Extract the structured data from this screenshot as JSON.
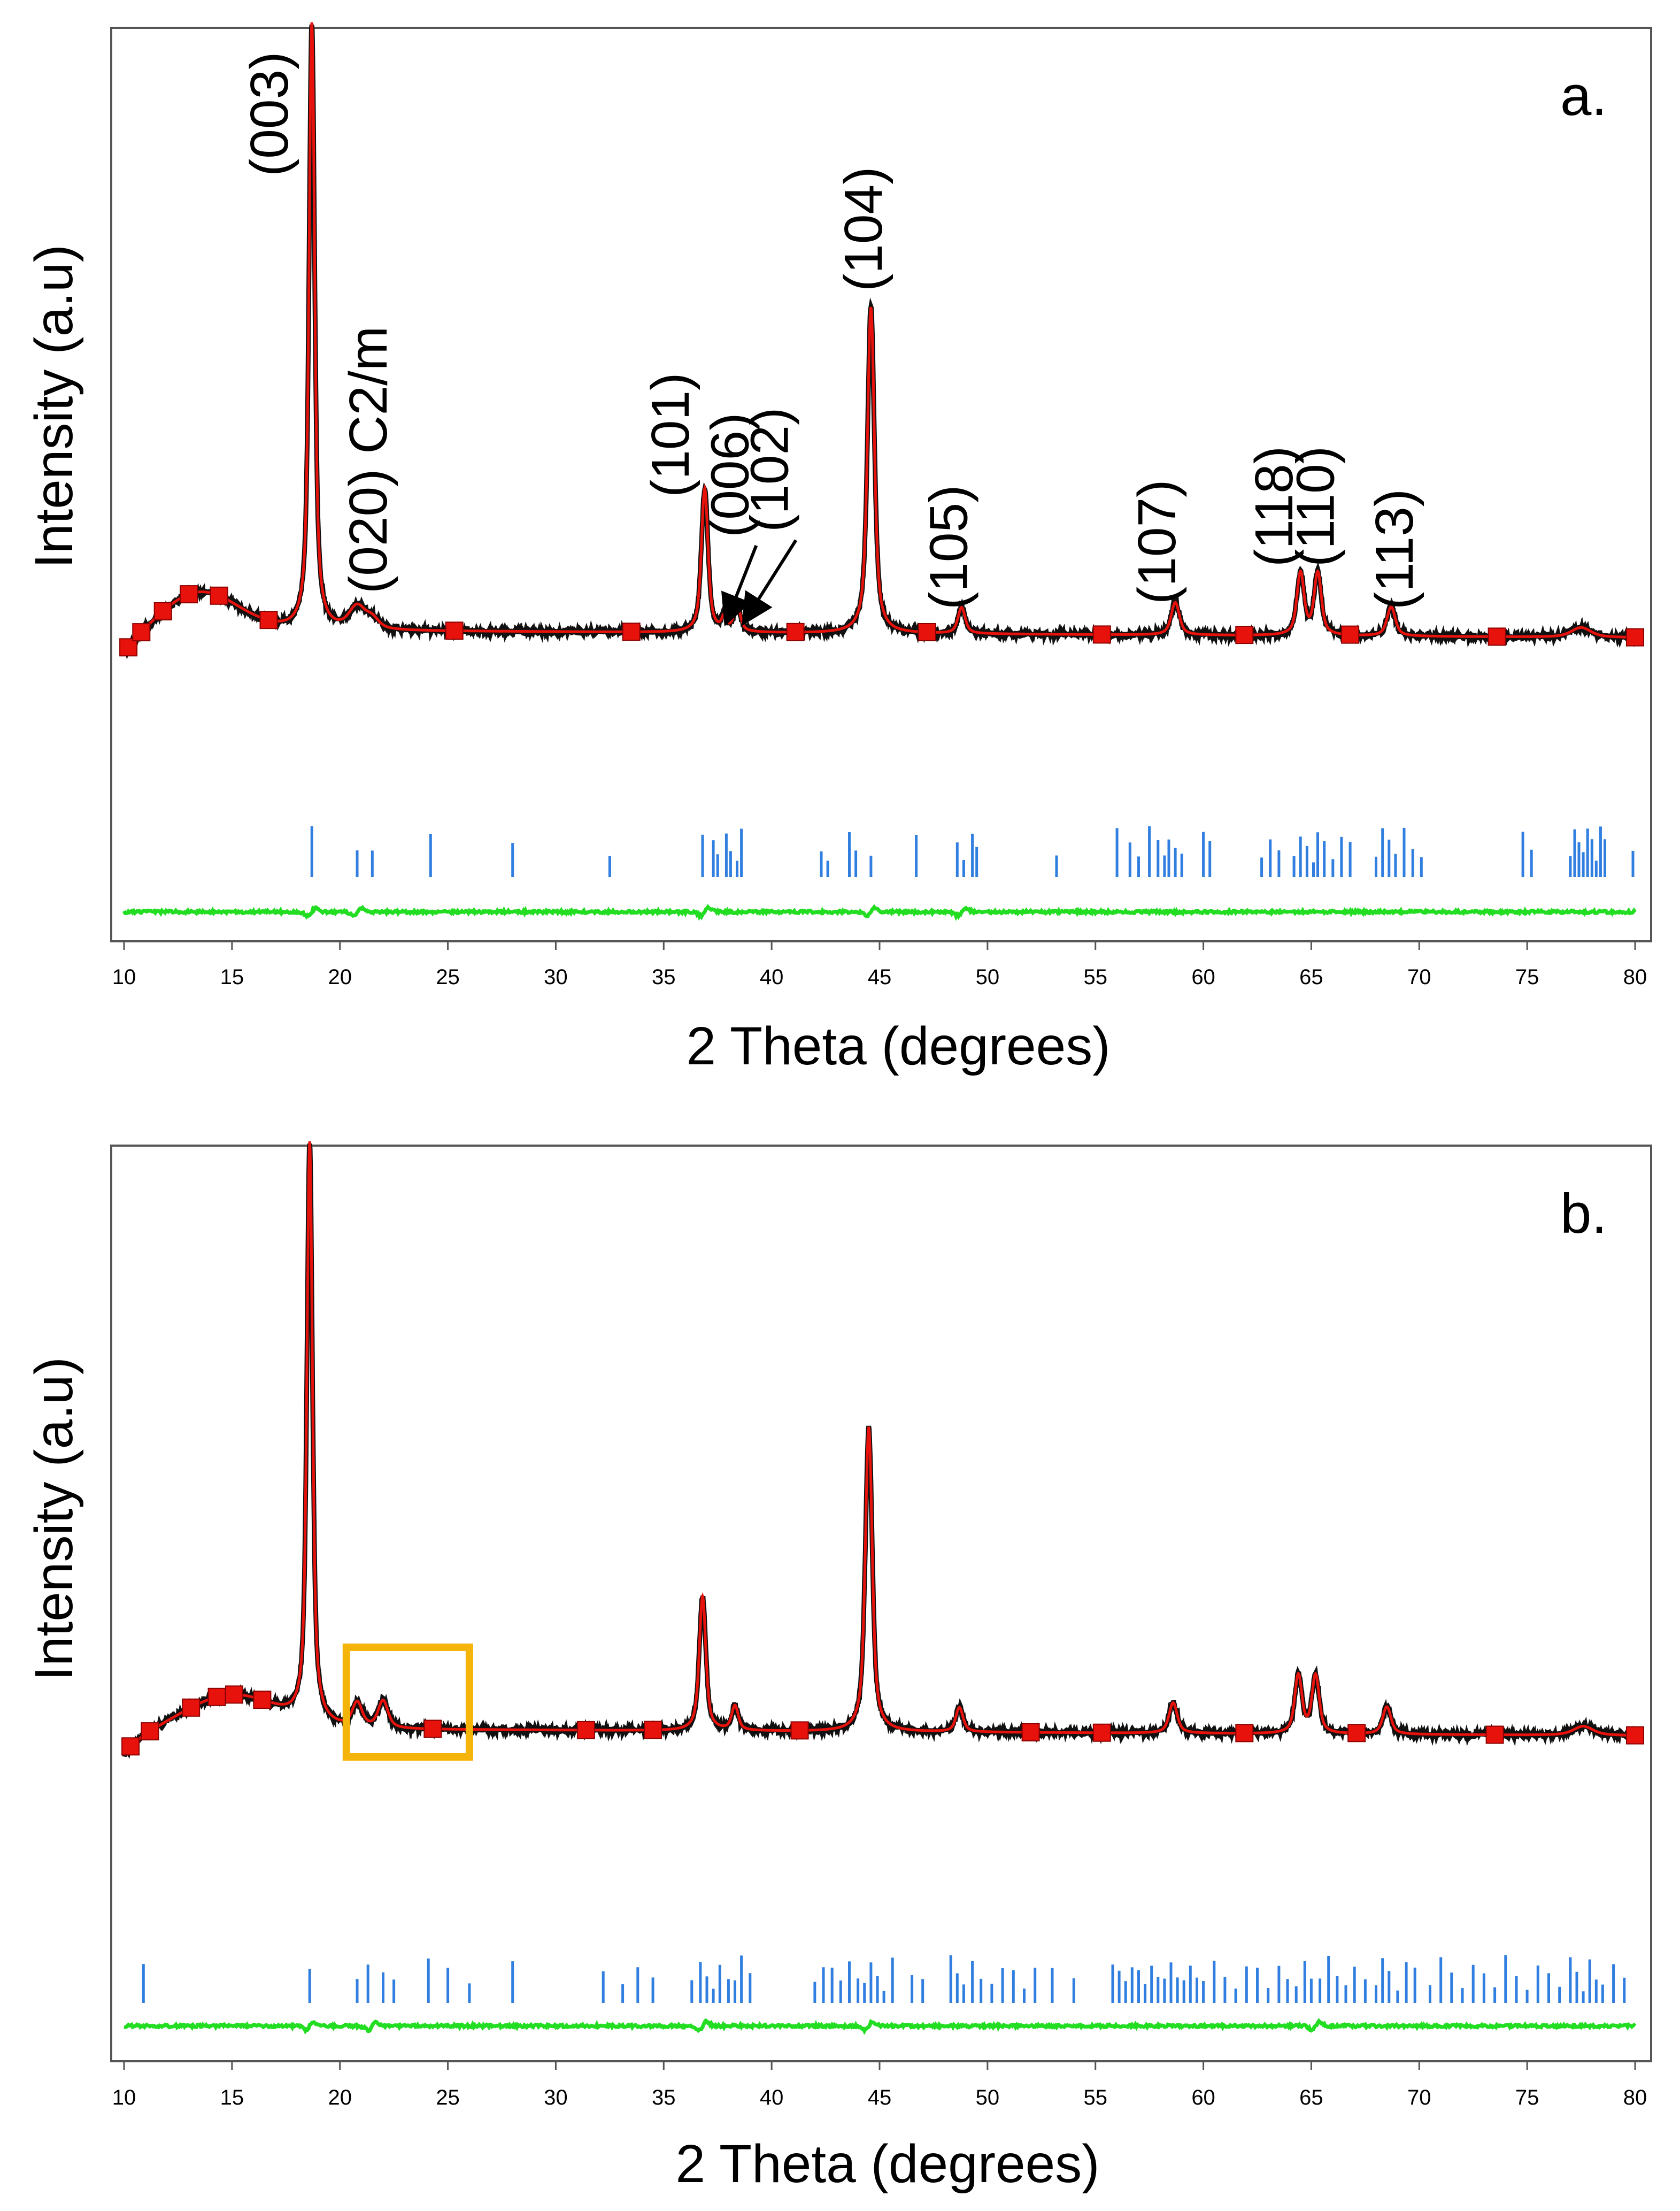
{
  "chart_data": [
    {
      "type": "line",
      "panel_label": "a.",
      "title": "",
      "xlabel": "2 Theta (degrees)",
      "ylabel": "Intensity (a.u)",
      "xlim": [
        10,
        80
      ],
      "ylim": [
        -0.45,
        1.02
      ],
      "x_ticks": [
        10,
        15,
        20,
        25,
        30,
        35,
        40,
        45,
        50,
        55,
        60,
        65,
        70,
        75,
        80
      ],
      "background": 0.05,
      "peaks": [
        {
          "x": 18.7,
          "h": 0.93,
          "w": 0.17,
          "label": "(003)"
        },
        {
          "x": 20.8,
          "h": 0.035,
          "w": 0.5,
          "label": "(020) C2/m"
        },
        {
          "x": 21.5,
          "h": 0.015,
          "w": 0.4,
          "label": ""
        },
        {
          "x": 36.9,
          "h": 0.22,
          "w": 0.2,
          "label": "(101)"
        },
        {
          "x": 37.8,
          "h": 0.02,
          "w": 0.15,
          "label": "(006)"
        },
        {
          "x": 38.4,
          "h": 0.04,
          "w": 0.2,
          "label": "(102)"
        },
        {
          "x": 44.6,
          "h": 0.5,
          "w": 0.21,
          "label": "(104)"
        },
        {
          "x": 48.8,
          "h": 0.04,
          "w": 0.22,
          "label": "(105)"
        },
        {
          "x": 58.7,
          "h": 0.05,
          "w": 0.25,
          "label": "(107)"
        },
        {
          "x": 64.5,
          "h": 0.095,
          "w": 0.22,
          "label": "(118)"
        },
        {
          "x": 65.3,
          "h": 0.095,
          "w": 0.22,
          "label": "(110)"
        },
        {
          "x": 68.7,
          "h": 0.045,
          "w": 0.25,
          "label": "(113)"
        },
        {
          "x": 77.5,
          "h": 0.015,
          "w": 0.6,
          "label": ""
        }
      ],
      "hump": {
        "x": 13.5,
        "h": 0.06,
        "w": 2.5
      },
      "marker_x": [
        10.2,
        10.8,
        11.8,
        13.0,
        14.4,
        16.7,
        25.3,
        33.5,
        41.1,
        47.2,
        55.3,
        61.9,
        66.8,
        73.6,
        80.0
      ],
      "bragg_ticks": [
        18.7,
        20.8,
        21.5,
        24.2,
        28.0,
        32.5,
        36.8,
        37.3,
        37.5,
        37.9,
        38.1,
        38.4,
        38.6,
        42.3,
        42.6,
        43.6,
        43.9,
        44.6,
        46.7,
        48.6,
        48.9,
        49.3,
        49.5,
        53.2,
        56.0,
        56.6,
        57.0,
        57.5,
        57.9,
        58.2,
        58.4,
        58.7,
        59.0,
        60.0,
        60.3,
        62.7,
        63.1,
        63.5,
        64.2,
        64.5,
        64.8,
        65.1,
        65.3,
        65.6,
        66.0,
        66.4,
        66.8,
        68.0,
        68.3,
        68.6,
        68.9,
        69.3,
        69.7,
        70.1,
        74.8,
        75.2,
        77.0,
        77.2,
        77.4,
        77.6,
        77.8,
        78.0,
        78.2,
        78.4,
        78.6,
        79.9
      ],
      "difference_bumps": [
        18.7,
        20.8,
        36.9,
        44.6,
        48.8
      ]
    },
    {
      "type": "line",
      "panel_label": "b.",
      "title": "",
      "xlabel": "2 Theta (degrees)",
      "ylabel": "Intensity (a.u)",
      "xlim": [
        10,
        80
      ],
      "ylim": [
        -0.45,
        1.02
      ],
      "x_ticks": [
        10,
        15,
        20,
        25,
        30,
        35,
        40,
        45,
        50,
        55,
        60,
        65,
        70,
        75,
        80
      ],
      "background": 0.05,
      "peaks": [
        {
          "x": 18.6,
          "h": 0.95,
          "w": 0.17,
          "label": ""
        },
        {
          "x": 20.8,
          "h": 0.04,
          "w": 0.3,
          "label": ""
        },
        {
          "x": 22.0,
          "h": 0.045,
          "w": 0.3,
          "label": ""
        },
        {
          "x": 36.8,
          "h": 0.22,
          "w": 0.2,
          "label": ""
        },
        {
          "x": 38.3,
          "h": 0.04,
          "w": 0.2,
          "label": ""
        },
        {
          "x": 44.5,
          "h": 0.5,
          "w": 0.21,
          "label": ""
        },
        {
          "x": 48.7,
          "h": 0.04,
          "w": 0.22,
          "label": ""
        },
        {
          "x": 58.6,
          "h": 0.05,
          "w": 0.25,
          "label": ""
        },
        {
          "x": 64.4,
          "h": 0.095,
          "w": 0.22,
          "label": ""
        },
        {
          "x": 65.2,
          "h": 0.095,
          "w": 0.22,
          "label": ""
        },
        {
          "x": 68.5,
          "h": 0.045,
          "w": 0.25,
          "label": ""
        },
        {
          "x": 77.6,
          "h": 0.015,
          "w": 0.6,
          "label": ""
        }
      ],
      "hump": {
        "x": 15.0,
        "h": 0.055,
        "w": 3.0
      },
      "highlight_box": {
        "x0": 20.3,
        "x1": 26.0
      },
      "marker_x": [
        10.3,
        11.2,
        13.1,
        14.3,
        15.1,
        16.4,
        24.3,
        31.4,
        34.5,
        41.3,
        52.0,
        55.3,
        61.9,
        67.1,
        73.5,
        80.0
      ],
      "bragg_ticks": [
        10.9,
        18.6,
        20.8,
        21.3,
        22.0,
        22.5,
        24.1,
        25.0,
        26.0,
        28.0,
        32.2,
        33.1,
        33.8,
        34.5,
        36.3,
        36.7,
        37.0,
        37.3,
        37.6,
        38.0,
        38.3,
        38.6,
        39.0,
        42.0,
        42.4,
        42.8,
        43.2,
        43.6,
        44.0,
        44.3,
        44.6,
        44.9,
        45.2,
        45.6,
        46.5,
        47.0,
        48.3,
        48.6,
        48.9,
        49.3,
        49.7,
        50.2,
        50.7,
        51.2,
        51.7,
        52.2,
        53.0,
        54.0,
        55.8,
        56.1,
        56.4,
        56.7,
        57.0,
        57.3,
        57.6,
        57.9,
        58.2,
        58.5,
        58.8,
        59.1,
        59.4,
        59.7,
        60.0,
        60.5,
        61.0,
        61.5,
        62.0,
        62.5,
        63.0,
        63.5,
        63.9,
        64.3,
        64.7,
        65.0,
        65.4,
        65.8,
        66.2,
        66.6,
        67.0,
        67.5,
        68.0,
        68.3,
        68.6,
        69.0,
        69.4,
        69.8,
        70.5,
        71.0,
        71.5,
        72.0,
        72.5,
        73.0,
        73.5,
        74.0,
        74.5,
        75.0,
        75.5,
        76.0,
        76.5,
        77.0,
        77.3,
        77.6,
        77.9,
        78.2,
        78.5,
        79.0,
        79.5
      ],
      "difference_bumps": [
        18.6,
        21.5,
        36.8,
        44.5,
        65.2
      ]
    }
  ]
}
